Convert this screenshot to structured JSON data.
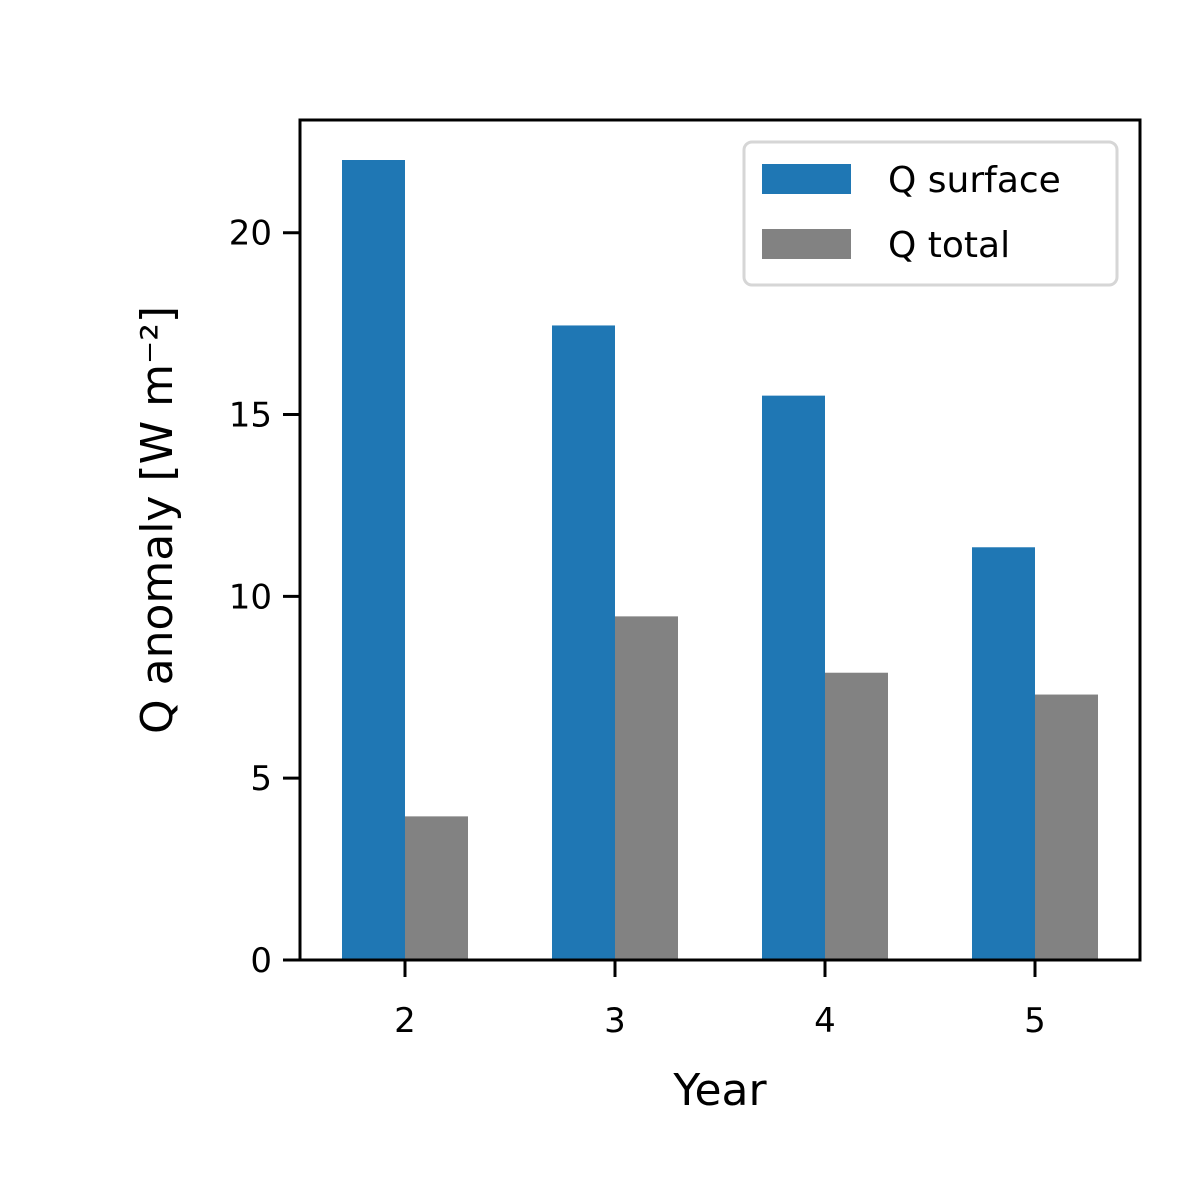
{
  "chart_data": {
    "type": "bar",
    "categories": [
      "2",
      "3",
      "4",
      "5"
    ],
    "series": [
      {
        "name": "Q surface",
        "color": "#1f77b4",
        "values": [
          22.0,
          17.45,
          15.52,
          11.35
        ]
      },
      {
        "name": "Q total",
        "color": "#828282",
        "values": [
          3.95,
          9.45,
          7.9,
          7.3
        ]
      }
    ],
    "xlabel": "Year",
    "ylabel": "Q anomaly [W m⁻²]",
    "ylim": [
      0,
      23.1
    ],
    "yticks": [
      0,
      5,
      10,
      15,
      20
    ],
    "grid": false,
    "legend_position": "top-right"
  }
}
